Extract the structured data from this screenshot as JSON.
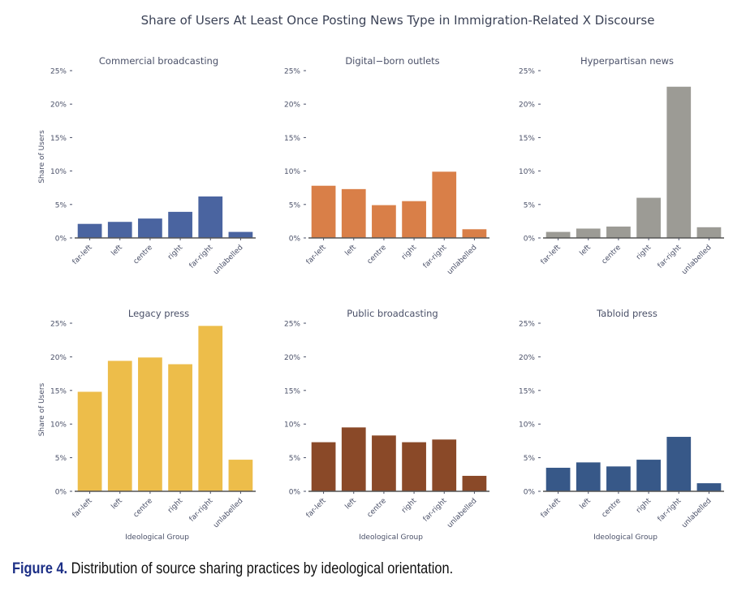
{
  "suptitle": "Share of Users At Least Once Posting News Type in Immigration-Related X Discourse",
  "caption": {
    "label": "Figure 4.",
    "text": " Distribution of source sharing practices by ideological orientation."
  },
  "chart_data": [
    {
      "type": "bar",
      "title": "Commercial broadcasting",
      "ylabel": "Share of Users",
      "xlabel": "",
      "categories": [
        "far-left",
        "left",
        "centre",
        "right",
        "far-right",
        "unlabelled"
      ],
      "values": [
        2.1,
        2.4,
        2.9,
        3.9,
        6.2,
        0.9
      ],
      "ylim": [
        0,
        25
      ],
      "yticks": [
        "0%",
        "5%",
        "10%",
        "15%",
        "20%",
        "25%"
      ],
      "color": "#4a64a0",
      "grid": false
    },
    {
      "type": "bar",
      "title": "Digital−born outlets",
      "ylabel": "",
      "xlabel": "",
      "categories": [
        "far-left",
        "left",
        "centre",
        "right",
        "far-right",
        "unlabelled"
      ],
      "values": [
        7.8,
        7.3,
        4.9,
        5.5,
        9.9,
        1.3
      ],
      "ylim": [
        0,
        25
      ],
      "yticks": [
        "0%",
        "5%",
        "10%",
        "15%",
        "20%",
        "25%"
      ],
      "color": "#d97f48",
      "grid": false
    },
    {
      "type": "bar",
      "title": "Hyperpartisan news",
      "ylabel": "",
      "xlabel": "",
      "categories": [
        "far-left",
        "left",
        "centre",
        "right",
        "far-right",
        "unlabelled"
      ],
      "values": [
        0.9,
        1.4,
        1.7,
        6.0,
        22.6,
        1.6
      ],
      "ylim": [
        0,
        25
      ],
      "yticks": [
        "0%",
        "5%",
        "10%",
        "15%",
        "20%",
        "25%"
      ],
      "color": "#9c9b95",
      "grid": false
    },
    {
      "type": "bar",
      "title": "Legacy press",
      "ylabel": "Share of Users",
      "xlabel": "Ideological Group",
      "categories": [
        "far-left",
        "left",
        "centre",
        "right",
        "far-right",
        "unlabelled"
      ],
      "values": [
        14.8,
        19.4,
        19.9,
        18.9,
        24.6,
        4.7
      ],
      "ylim": [
        0,
        25
      ],
      "yticks": [
        "0%",
        "5%",
        "10%",
        "15%",
        "20%",
        "25%"
      ],
      "color": "#edbd4a",
      "grid": false
    },
    {
      "type": "bar",
      "title": "Public broadcasting",
      "ylabel": "",
      "xlabel": "Ideological Group",
      "categories": [
        "far-left",
        "left",
        "centre",
        "right",
        "far-right",
        "unlabelled"
      ],
      "values": [
        7.3,
        9.5,
        8.3,
        7.3,
        7.7,
        2.3
      ],
      "ylim": [
        0,
        25
      ],
      "yticks": [
        "0%",
        "5%",
        "10%",
        "15%",
        "20%",
        "25%"
      ],
      "color": "#8a4928",
      "grid": false
    },
    {
      "type": "bar",
      "title": "Tabloid press",
      "ylabel": "",
      "xlabel": "Ideological Group",
      "categories": [
        "far-left",
        "left",
        "centre",
        "right",
        "far-right",
        "unlabelled"
      ],
      "values": [
        3.5,
        4.3,
        3.7,
        4.7,
        8.1,
        1.2
      ],
      "ylim": [
        0,
        25
      ],
      "yticks": [
        "0%",
        "5%",
        "10%",
        "15%",
        "20%",
        "25%"
      ],
      "color": "#375888",
      "grid": false
    }
  ]
}
